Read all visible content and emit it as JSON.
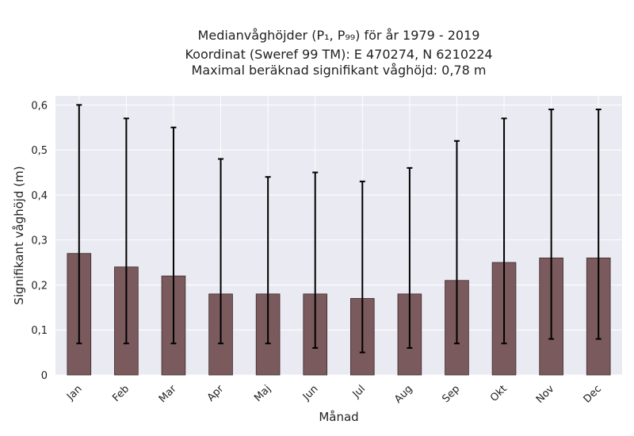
{
  "chart_data": {
    "type": "bar",
    "title_lines": [
      "Medianvåghöjder (P₁, P₉₉) för år 1979 - 2019",
      "Koordinat (Sweref 99 TM): E 470274, N 6210224",
      "Maximal beräknad signifikant våghöjd: 0,78 m"
    ],
    "xlabel": "Månad",
    "ylabel": "Signifikant våghöjd (m)",
    "ylim": [
      0,
      0.62
    ],
    "yticks": [
      0,
      0.1,
      0.2,
      0.3,
      0.4,
      0.5,
      0.6
    ],
    "ytick_labels": [
      "0",
      "0,1",
      "0,2",
      "0,3",
      "0,4",
      "0,5",
      "0,6"
    ],
    "categories": [
      "Jan",
      "Feb",
      "Mar",
      "Apr",
      "Maj",
      "Jun",
      "Jul",
      "Aug",
      "Sep",
      "Okt",
      "Nov",
      "Dec"
    ],
    "values": [
      0.27,
      0.24,
      0.22,
      0.18,
      0.18,
      0.18,
      0.17,
      0.18,
      0.21,
      0.25,
      0.26,
      0.26
    ],
    "error_low": [
      0.07,
      0.07,
      0.07,
      0.07,
      0.07,
      0.06,
      0.05,
      0.06,
      0.07,
      0.07,
      0.08,
      0.08
    ],
    "error_high": [
      0.6,
      0.57,
      0.55,
      0.48,
      0.44,
      0.45,
      0.43,
      0.46,
      0.52,
      0.57,
      0.59,
      0.59
    ],
    "grid": true,
    "bar_color": "#7a5a5c",
    "background_color": "#eaeaf2",
    "error_color": "#000000"
  }
}
